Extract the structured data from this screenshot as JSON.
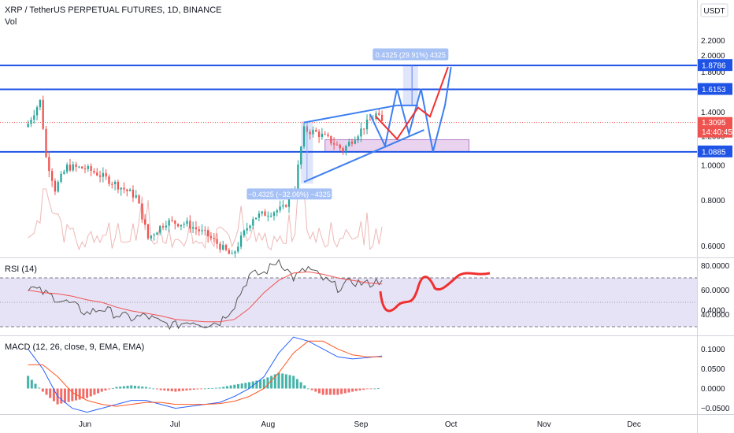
{
  "header": {
    "title": "XRP / TetherUS PERPETUAL FUTURES, 1D, BINANCE",
    "vol_label": "Vol",
    "currency": "USDT"
  },
  "colors": {
    "up": "#26a69a",
    "down": "#ef5350",
    "level": "#1e53e5",
    "channel": "#3d7ff0",
    "rsi": "#555555",
    "rsi_ma": "#ef5350",
    "macd": "#2962ff",
    "signal": "#ff5722",
    "projection": "#f03030",
    "range_fill": "#dfe6fb",
    "zone_fill": "#e9d3ee"
  },
  "price_axis": {
    "ticks": [
      "2.2000",
      "2.0000",
      "1.8000",
      "1.4000",
      "1.2000",
      "1.0000",
      "0.8000",
      "0.6000",
      "0.4000"
    ]
  },
  "levels": [
    {
      "value": 1.8786,
      "label": "1.8786"
    },
    {
      "value": 1.6153,
      "label": "1.6153"
    },
    {
      "value": 1.0885,
      "label": "1.0885"
    }
  ],
  "last_price": {
    "value": 1.3095,
    "label": "1.3095",
    "countdown": "14:40:45"
  },
  "measures": {
    "down": "−0.4325 (−32.06%) −4325",
    "up": "0.4325 (29.91%) 4325"
  },
  "rsi": {
    "title": "RSI (14)",
    "ticks": [
      "80.0000",
      "60.0000",
      "40.0000"
    ],
    "band": [
      30,
      70
    ]
  },
  "macd": {
    "title": "MACD (12, 26, close, 9, EMA, EMA)",
    "ticks": [
      "0.1000",
      "0.0500",
      "0.0000",
      "−0.0500"
    ]
  },
  "x_axis": {
    "labels": [
      "Jun",
      "Jul",
      "Aug",
      "Sep",
      "Oct",
      "Nov",
      "Dec"
    ]
  },
  "chart_data": {
    "type": "candlestick",
    "title": "XRP / TetherUS PERPETUAL FUTURES, 1D, BINANCE",
    "y_scale": "log",
    "ylim": [
      0.36,
      2.3
    ],
    "price_path": [
      {
        "date": "2021-05-13",
        "close": 1.3
      },
      {
        "date": "2021-05-17",
        "close": 1.5
      },
      {
        "date": "2021-05-19",
        "close": 1.05
      },
      {
        "date": "2021-05-22",
        "close": 0.86
      },
      {
        "date": "2021-05-26",
        "close": 0.99
      },
      {
        "date": "2021-06-01",
        "close": 0.98
      },
      {
        "date": "2021-06-05",
        "close": 0.95
      },
      {
        "date": "2021-06-12",
        "close": 0.88
      },
      {
        "date": "2021-06-18",
        "close": 0.82
      },
      {
        "date": "2021-06-22",
        "close": 0.63
      },
      {
        "date": "2021-06-28",
        "close": 0.7
      },
      {
        "date": "2021-07-05",
        "close": 0.69
      },
      {
        "date": "2021-07-12",
        "close": 0.64
      },
      {
        "date": "2021-07-20",
        "close": 0.56
      },
      {
        "date": "2021-07-27",
        "close": 0.72
      },
      {
        "date": "2021-08-01",
        "close": 0.74
      },
      {
        "date": "2021-08-06",
        "close": 0.76
      },
      {
        "date": "2021-08-10",
        "close": 0.86
      },
      {
        "date": "2021-08-13",
        "close": 1.25
      },
      {
        "date": "2021-08-17",
        "close": 1.23
      },
      {
        "date": "2021-08-21",
        "close": 1.18
      },
      {
        "date": "2021-08-26",
        "close": 1.1
      },
      {
        "date": "2021-09-01",
        "close": 1.25
      },
      {
        "date": "2021-09-06",
        "close": 1.38
      },
      {
        "date": "2021-09-08",
        "close": 1.3095
      }
    ],
    "horizontal_levels": [
      1.8786,
      1.6153,
      1.0885
    ],
    "rsi_ylim": [
      20,
      90
    ],
    "rsi_values": [
      63,
      58,
      53,
      48,
      41,
      45,
      40,
      37,
      39,
      33,
      31,
      35,
      32,
      34,
      48,
      72,
      74,
      85,
      70,
      78,
      69,
      62,
      67,
      65,
      68
    ],
    "rsi_ma_values": [
      60,
      58,
      57,
      55,
      52,
      50,
      46,
      43,
      41,
      39,
      36,
      35,
      34,
      34,
      36,
      45,
      58,
      68,
      74,
      75,
      73,
      70,
      68,
      66,
      65
    ],
    "macd_ylim": [
      -0.06,
      0.13
    ],
    "macd_values": [
      0.1,
      0.05,
      -0.02,
      -0.05,
      -0.06,
      -0.05,
      -0.04,
      -0.03,
      -0.03,
      -0.04,
      -0.05,
      -0.045,
      -0.04,
      -0.035,
      -0.02,
      0.0,
      0.03,
      0.09,
      0.13,
      0.12,
      0.1,
      0.08,
      0.075,
      0.078,
      0.082
    ],
    "signal_values": [
      0.06,
      0.06,
      0.03,
      -0.01,
      -0.03,
      -0.04,
      -0.045,
      -0.04,
      -0.035,
      -0.035,
      -0.04,
      -0.04,
      -0.04,
      -0.038,
      -0.032,
      -0.02,
      0.0,
      0.04,
      0.09,
      0.12,
      0.12,
      0.1,
      0.085,
      0.08,
      0.08
    ]
  }
}
